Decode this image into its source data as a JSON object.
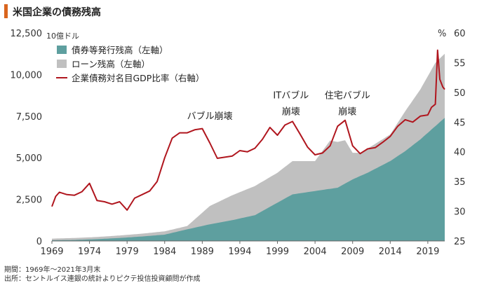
{
  "header": {
    "title": "米国企業の債務残高",
    "accent_color": "#d9651e"
  },
  "footer": {
    "period": "期間：1969年～2021年3月末",
    "source": "出所：セントルイス連銀の統計よりピクテ投信投資顧問が作成"
  },
  "chart_data": {
    "type": "area",
    "title": "米国企業の債務残高",
    "left_axis_unit": "10億ドル",
    "right_axis_unit": "%",
    "left_axis": {
      "min": 0,
      "max": 12500,
      "ticks": [
        "0",
        "2,500",
        "5,000",
        "7,500",
        "10,000",
        "12,500"
      ],
      "tick_values": [
        0,
        2500,
        5000,
        7500,
        10000,
        12500
      ]
    },
    "right_axis": {
      "min": 25,
      "max": 60,
      "ticks": [
        "25",
        "30",
        "35",
        "40",
        "45",
        "50",
        "55",
        "60"
      ],
      "tick_values": [
        25,
        30,
        35,
        40,
        45,
        50,
        55,
        60
      ]
    },
    "x_axis": {
      "min": 1969,
      "max": 2021.25,
      "ticks": [
        "1969",
        "1974",
        "1979",
        "1984",
        "1989",
        "1994",
        "1999",
        "2004",
        "2009",
        "2014",
        "2019"
      ],
      "tick_values": [
        1969,
        1974,
        1979,
        1984,
        1989,
        1994,
        1999,
        2004,
        2009,
        2014,
        2019
      ]
    },
    "legend": [
      {
        "label": "債券等発行残高（左軸）",
        "color": "#5e9f9f",
        "kind": "area"
      },
      {
        "label": "ローン残高（左軸）",
        "color": "#c0c0c0",
        "kind": "area"
      },
      {
        "label": "企業債務対名目GDP比率（右軸）",
        "color": "#b0161e",
        "kind": "line"
      }
    ],
    "annotations": [
      {
        "text": "バブル崩壊",
        "x": 1990.0,
        "y_right": 45.5
      },
      {
        "text": "ITバブル",
        "x": 2000.8,
        "y_right": 49.0
      },
      {
        "text": "崩壊",
        "x": 2000.8,
        "y_right": 46.3
      },
      {
        "text": "住宅バブル",
        "x": 2008.3,
        "y_right": 49.0
      },
      {
        "text": "崩壊",
        "x": 2008.3,
        "y_right": 46.3
      }
    ],
    "series": [
      {
        "name": "債券等発行残高（左軸）",
        "axis": "left",
        "x": [
          1969,
          1972,
          1975,
          1978,
          1981,
          1984,
          1987,
          1990,
          1993,
          1996,
          1999,
          2001,
          2004,
          2007,
          2009,
          2011,
          2014,
          2016,
          2018,
          2019,
          2020,
          2021.25
        ],
        "values": [
          40,
          60,
          110,
          180,
          270,
          380,
          700,
          1000,
          1250,
          1550,
          2300,
          2800,
          3000,
          3200,
          3700,
          4100,
          4800,
          5400,
          6100,
          6500,
          6900,
          7400
        ]
      },
      {
        "name": "ローン残高（左軸）",
        "axis": "left",
        "x": [
          1969,
          1972,
          1975,
          1978,
          1981,
          1984,
          1987,
          1990,
          1993,
          1996,
          1999,
          2001,
          2004,
          2006,
          2008,
          2009,
          2010,
          2012,
          2014,
          2016,
          2018,
          2019,
          2020,
          2021.25
        ],
        "values": [
          100,
          120,
          130,
          150,
          170,
          200,
          200,
          1100,
          1500,
          1750,
          1800,
          2000,
          1800,
          2900,
          2600,
          1600,
          1400,
          1500,
          1600,
          2400,
          3000,
          3400,
          3800,
          3850
        ]
      },
      {
        "name": "企業債務対名目GDP比率（右軸）",
        "axis": "right",
        "x": [
          1969,
          1969.5,
          1970,
          1971,
          1972,
          1973,
          1974,
          1975,
          1976,
          1977,
          1978,
          1979,
          1980,
          1981,
          1982,
          1983,
          1984,
          1985,
          1986,
          1987,
          1988,
          1989,
          1990,
          1991,
          1992,
          1993,
          1994,
          1995,
          1996,
          1997,
          1998,
          1999,
          2000,
          2001,
          2002,
          2003,
          2004,
          2005,
          2006,
          2007,
          2008,
          2009,
          2010,
          2011,
          2012,
          2013,
          2014,
          2015,
          2016,
          2017,
          2018,
          2019,
          2019.5,
          2020,
          2020.3,
          2020.6,
          2021,
          2021.25
        ],
        "values": [
          30.8,
          32.5,
          33.2,
          32.8,
          32.7,
          33.3,
          34.7,
          31.8,
          31.6,
          31.2,
          31.6,
          30.2,
          32.2,
          32.8,
          33.4,
          35.0,
          39.0,
          42.3,
          43.2,
          43.2,
          43.7,
          43.9,
          41.5,
          38.9,
          39.1,
          39.3,
          40.2,
          40.0,
          40.6,
          42.1,
          44.1,
          42.8,
          44.5,
          45.1,
          43.0,
          40.8,
          39.5,
          39.8,
          41.0,
          44.3,
          45.3,
          41.0,
          39.7,
          40.5,
          40.7,
          41.6,
          42.6,
          44.3,
          45.4,
          45.0,
          46.0,
          46.2,
          47.5,
          48.0,
          57.1,
          52.2,
          50.9,
          50.5
        ]
      }
    ],
    "grid": false
  }
}
